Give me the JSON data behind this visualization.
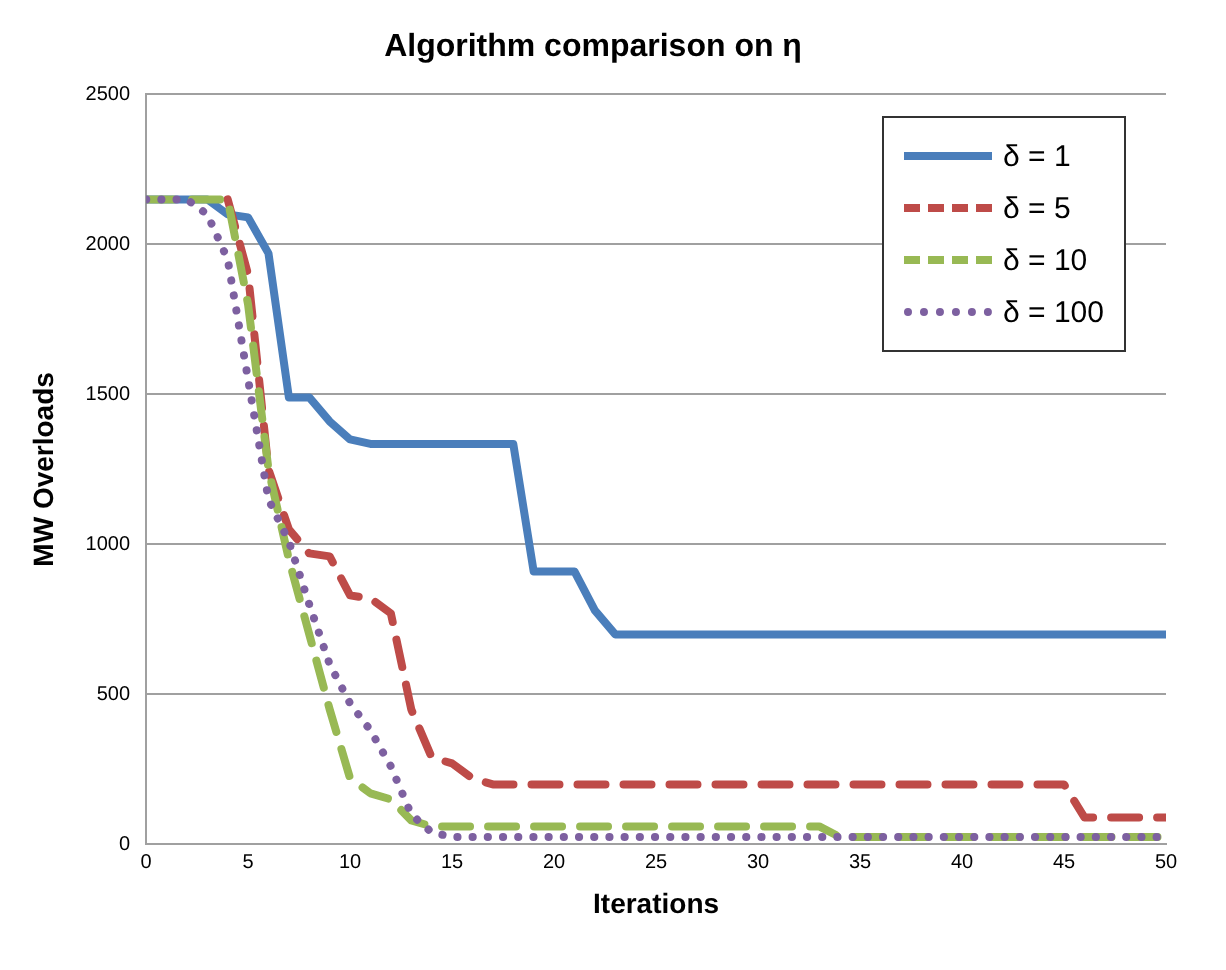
{
  "chart_data": {
    "type": "line",
    "title": "Algorithm comparison on η",
    "xlabel": "Iterations",
    "ylabel": "MW Overloads",
    "x": [
      0,
      1,
      2,
      3,
      4,
      5,
      6,
      7,
      8,
      9,
      10,
      11,
      12,
      13,
      14,
      15,
      16,
      17,
      18,
      19,
      20,
      21,
      22,
      23,
      24,
      25,
      26,
      27,
      28,
      29,
      30,
      31,
      32,
      33,
      34,
      35,
      36,
      37,
      38,
      39,
      40,
      41,
      42,
      43,
      44,
      45,
      46,
      47,
      48,
      49,
      50
    ],
    "series": [
      {
        "name": "δ = 1",
        "color": "#4a7ebb",
        "line_style": "solid",
        "values": [
          2150,
          2150,
          2150,
          2150,
          2100,
          2090,
          1970,
          1490,
          1490,
          1410,
          1350,
          1335,
          1335,
          1335,
          1335,
          1335,
          1335,
          1335,
          1335,
          910,
          910,
          910,
          780,
          700,
          700,
          700,
          700,
          700,
          700,
          700,
          700,
          700,
          700,
          700,
          700,
          700,
          700,
          700,
          700,
          700,
          700,
          700,
          700,
          700,
          700,
          700,
          700,
          700,
          700,
          700,
          700
        ]
      },
      {
        "name": "δ = 5",
        "color": "#be4b48",
        "line_style": "dashed",
        "values": [
          null,
          null,
          null,
          null,
          2150,
          1900,
          1250,
          1050,
          970,
          960,
          830,
          820,
          770,
          450,
          290,
          270,
          220,
          200,
          200,
          200,
          200,
          200,
          200,
          200,
          200,
          200,
          200,
          200,
          200,
          200,
          200,
          200,
          200,
          200,
          200,
          200,
          200,
          200,
          200,
          200,
          200,
          200,
          200,
          200,
          200,
          200,
          90,
          90,
          90,
          90,
          90
        ]
      },
      {
        "name": "δ = 10",
        "color": "#98b954",
        "line_style": "dashed",
        "values": [
          2150,
          2150,
          2150,
          2150,
          2150,
          1800,
          1250,
          950,
          700,
          450,
          220,
          170,
          150,
          80,
          60,
          60,
          60,
          60,
          60,
          60,
          60,
          60,
          60,
          60,
          60,
          60,
          60,
          60,
          60,
          60,
          60,
          60,
          60,
          60,
          25,
          25,
          25,
          25,
          25,
          25,
          25,
          25,
          25,
          25,
          25,
          25,
          25,
          25,
          25,
          25,
          25
        ]
      },
      {
        "name": "δ = 100",
        "color": "#7d60a0",
        "line_style": "dotted",
        "values": [
          2150,
          2150,
          2150,
          2100,
          1950,
          1550,
          1150,
          1010,
          800,
          600,
          470,
          380,
          260,
          100,
          40,
          25,
          25,
          25,
          25,
          25,
          25,
          25,
          25,
          25,
          25,
          25,
          25,
          25,
          25,
          25,
          25,
          25,
          25,
          25,
          25,
          25,
          25,
          25,
          25,
          25,
          25,
          25,
          25,
          25,
          25,
          25,
          25,
          25,
          25,
          25,
          25
        ]
      }
    ],
    "xlim": [
      0,
      50
    ],
    "xticks": [
      0,
      5,
      10,
      15,
      20,
      25,
      30,
      35,
      40,
      45,
      50
    ],
    "ylim": [
      0,
      2500
    ],
    "yticks": [
      0,
      500,
      1000,
      1500,
      2000,
      2500
    ],
    "grid": "y",
    "legend": "top right",
    "marker": "none"
  }
}
